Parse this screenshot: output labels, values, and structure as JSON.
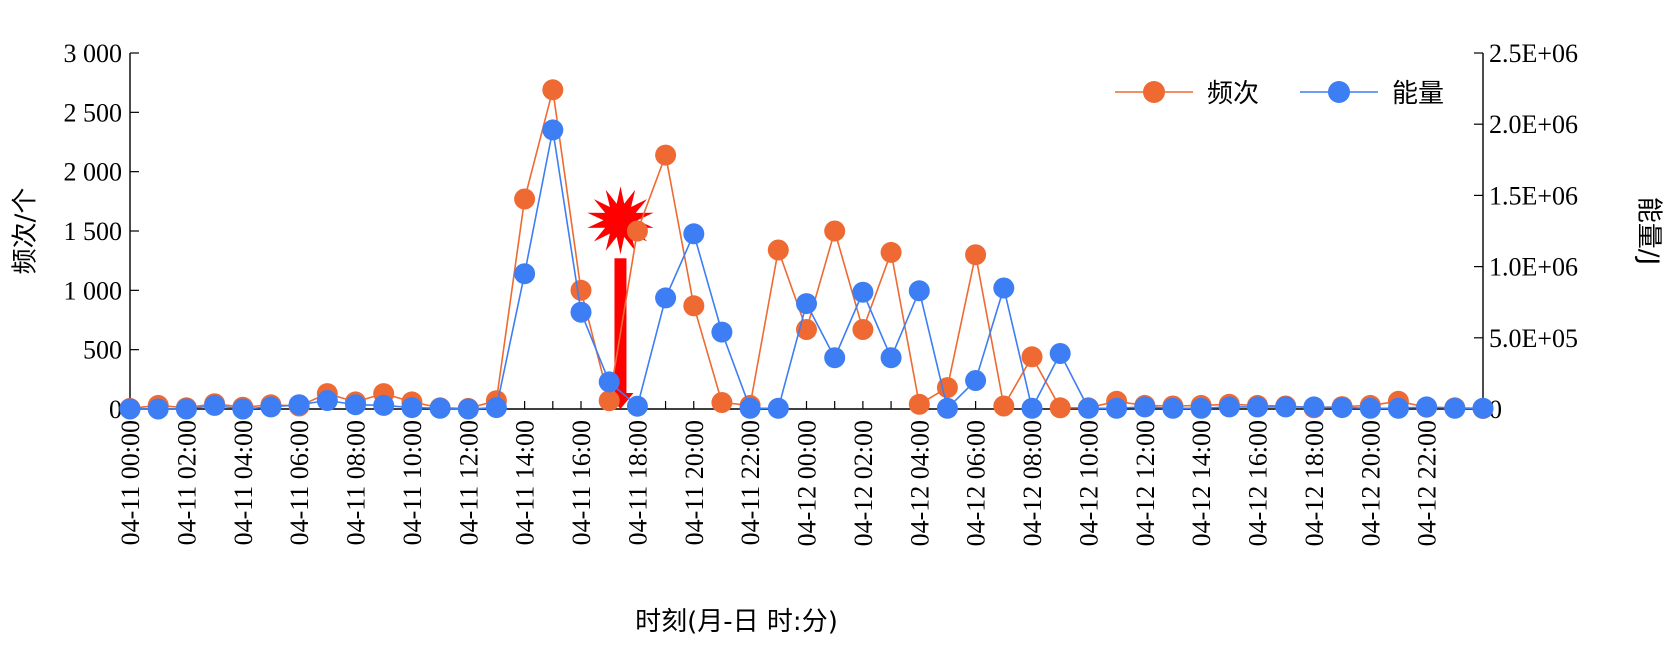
{
  "chart_data": {
    "type": "line",
    "xlabel": "时刻(月-日  时:分)",
    "ylabel_left": "频次/个",
    "ylabel_right": "能量/J",
    "y_left_lim": [
      0,
      3000
    ],
    "y_right_lim": [
      0,
      2500000
    ],
    "y_left_ticks": [
      0,
      500,
      1000,
      1500,
      2000,
      2500,
      3000
    ],
    "y_left_tick_labels": [
      "0",
      "500",
      "1 000",
      "1 500",
      "2 000",
      "2 500",
      "3 000"
    ],
    "y_right_ticks": [
      0,
      500000,
      1000000,
      1500000,
      2000000,
      2500000
    ],
    "y_right_tick_labels": [
      "0",
      "5.0E+05",
      "1.0E+06",
      "1.5E+06",
      "2.0E+06",
      "2.5E+06"
    ],
    "x": [
      "04-11 00:00",
      "04-11 01:00",
      "04-11 02:00",
      "04-11 03:00",
      "04-11 04:00",
      "04-11 05:00",
      "04-11 06:00",
      "04-11 07:00",
      "04-11 08:00",
      "04-11 09:00",
      "04-11 10:00",
      "04-11 11:00",
      "04-11 12:00",
      "04-11 13:00",
      "04-11 14:00",
      "04-11 15:00",
      "04-11 16:00",
      "04-11 17:00",
      "04-11 18:00",
      "04-11 19:00",
      "04-11 20:00",
      "04-11 21:00",
      "04-11 22:00",
      "04-11 23:00",
      "04-12 00:00",
      "04-12 01:00",
      "04-12 02:00",
      "04-12 03:00",
      "04-12 04:00",
      "04-12 05:00",
      "04-12 06:00",
      "04-12 07:00",
      "04-12 08:00",
      "04-12 09:00",
      "04-12 10:00",
      "04-12 11:00",
      "04-12 12:00",
      "04-12 13:00",
      "04-12 14:00",
      "04-12 15:00",
      "04-12 16:00",
      "04-12 17:00",
      "04-12 18:00",
      "04-12 19:00",
      "04-12 20:00",
      "04-12 21:00",
      "04-12 22:00",
      "04-12 23:00",
      "04-13 00:00"
    ],
    "x_tick_labels": [
      "04-11 00:00",
      "04-11 02:00",
      "04-11 04:00",
      "04-11 06:00",
      "04-11 08:00",
      "04-11 10:00",
      "04-11 12:00",
      "04-11 14:00",
      "04-11 16:00",
      "04-11 18:00",
      "04-11 20:00",
      "04-11 22:00",
      "04-12 00:00",
      "04-12 02:00",
      "04-12 04:00",
      "04-12 06:00",
      "04-12 08:00",
      "04-12 10:00",
      "04-12 12:00",
      "04-12 14:00",
      "04-12 16:00",
      "04-12 18:00",
      "04-12 20:00",
      "04-12 22:00"
    ],
    "series": [
      {
        "name": "频次",
        "axis": "left",
        "color": "#EF6A32",
        "values": [
          5,
          30,
          10,
          45,
          15,
          35,
          25,
          130,
          60,
          130,
          60,
          10,
          5,
          70,
          1770,
          2690,
          1000,
          70,
          1500,
          2140,
          870,
          55,
          30,
          1340,
          670,
          1500,
          670,
          1320,
          40,
          180,
          1300,
          25,
          440,
          10,
          10,
          65,
          30,
          25,
          30,
          40,
          30,
          25,
          10,
          20,
          30,
          65,
          15,
          10,
          5
        ]
      },
      {
        "name": "能量",
        "axis": "right",
        "color": "#3D7EF4",
        "values": [
          0,
          0,
          0,
          25000,
          0,
          15000,
          30000,
          60000,
          30000,
          25000,
          10000,
          5000,
          0,
          10000,
          950000,
          1960000,
          680000,
          190000,
          20000,
          780000,
          1230000,
          540000,
          5000,
          5000,
          740000,
          360000,
          820000,
          360000,
          830000,
          5000,
          200000,
          850000,
          5000,
          390000,
          5000,
          5000,
          15000,
          5000,
          5000,
          15000,
          15000,
          15000,
          15000,
          10000,
          5000,
          5000,
          15000,
          5000,
          5000
        ]
      }
    ],
    "legend_position": "top-right",
    "annotation": {
      "type": "arrow-with-burst",
      "color": "#FF0000",
      "x_position": 17.4,
      "from_y": 1270,
      "to_y": 0
    },
    "grid": false
  }
}
